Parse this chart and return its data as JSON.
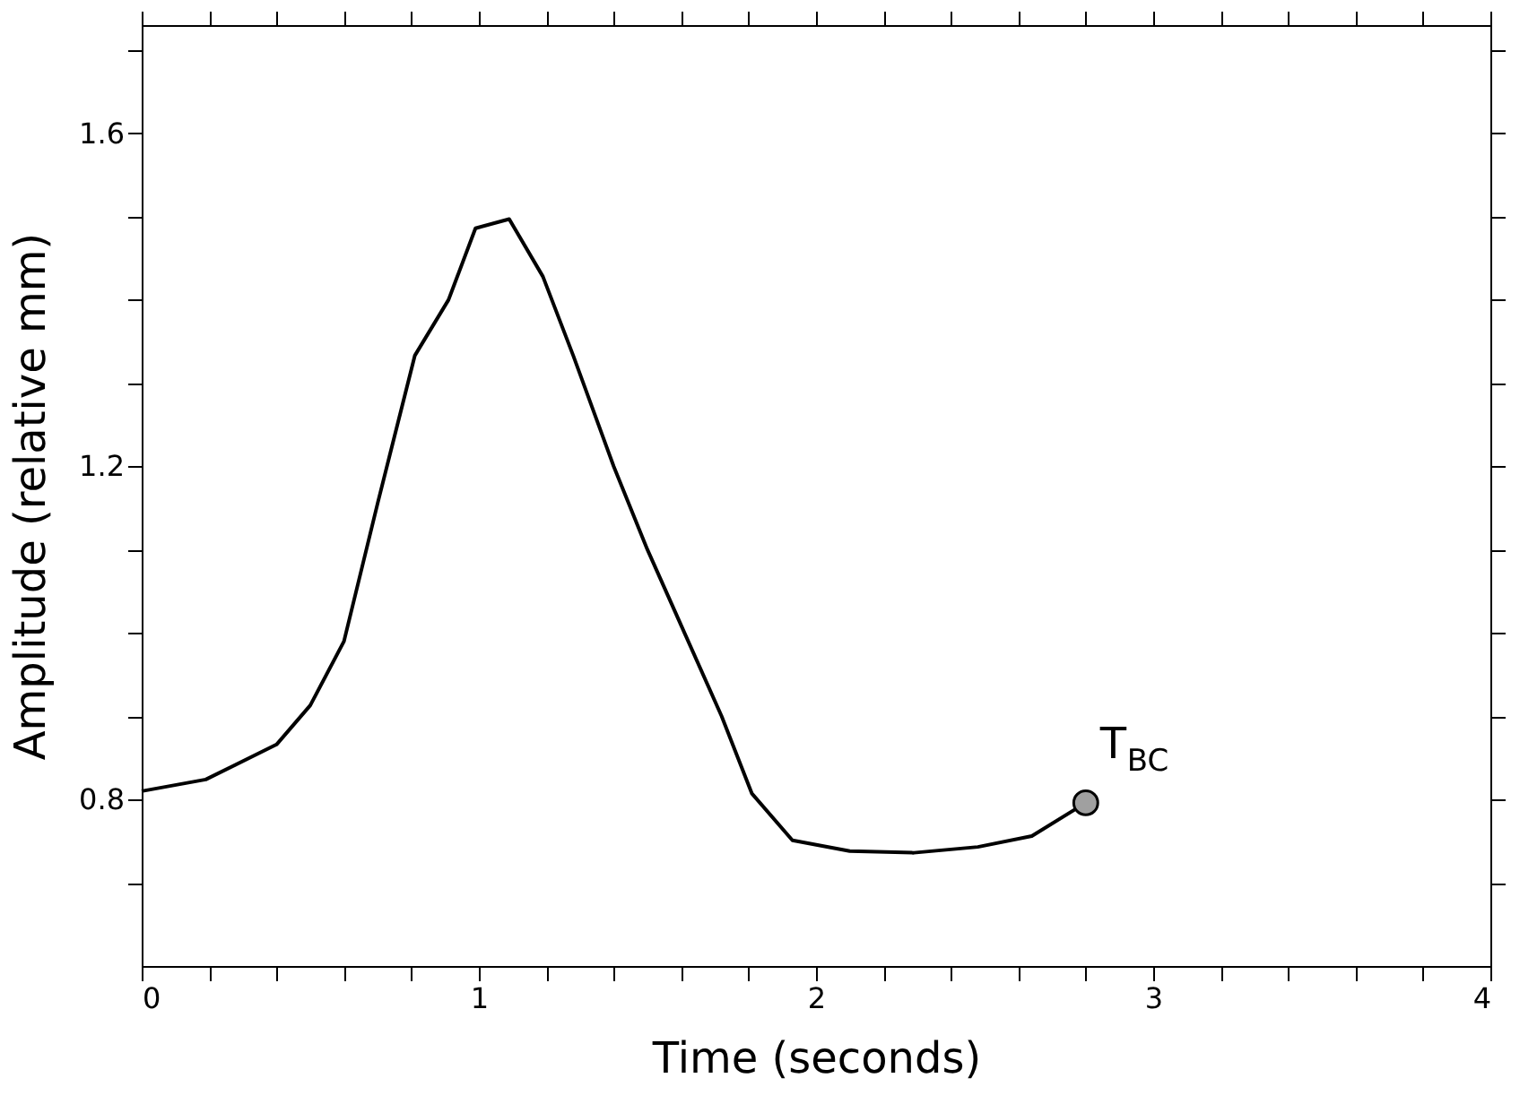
{
  "chart_data": {
    "type": "line",
    "xlabel": "Time (seconds)",
    "ylabel": "Amplitude (relative mm)",
    "xlim": [
      0,
      4
    ],
    "ylim": [
      0.6,
      1.73
    ],
    "xticks": [
      0,
      {
        "value": 0.2,
        "label": null
      },
      {
        "value": 0.4,
        "label": null
      },
      {
        "value": 0.6,
        "label": null
      },
      {
        "value": 0.8,
        "label": null
      },
      1,
      {
        "value": 1.2,
        "label": null
      },
      {
        "value": 1.4,
        "label": null
      },
      {
        "value": 1.6,
        "label": null
      },
      {
        "value": 1.8,
        "label": null
      },
      2,
      {
        "value": 2.2,
        "label": null
      },
      {
        "value": 2.4,
        "label": null
      },
      {
        "value": 2.6,
        "label": null
      },
      {
        "value": 2.8,
        "label": null
      },
      3,
      {
        "value": 3.2,
        "label": null
      },
      {
        "value": 3.4,
        "label": null
      },
      {
        "value": 3.6,
        "label": null
      },
      {
        "value": 3.8,
        "label": null
      },
      4
    ],
    "yticks": [
      {
        "value": 0.7,
        "label": null
      },
      0.8,
      {
        "value": 0.9,
        "label": null
      },
      {
        "value": 1.0,
        "label": null
      },
      {
        "value": 1.1,
        "label": null
      },
      1.2,
      {
        "value": 1.3,
        "label": null
      },
      {
        "value": 1.4,
        "label": null
      },
      {
        "value": 1.5,
        "label": null
      },
      1.6,
      {
        "value": 1.7,
        "label": null
      }
    ],
    "series": [
      {
        "color": "#000000",
        "marker": "none",
        "line_style": "solid",
        "x": [
          0,
          0.19,
          0.4,
          0.5,
          0.6,
          0.7,
          0.81,
          0.91,
          0.99,
          1.09,
          1.19,
          1.28,
          1.4,
          1.5,
          1.61,
          1.72,
          1.81,
          1.93,
          2.1,
          2.29,
          2.48,
          2.64,
          2.8
        ],
        "values": [
          0.81,
          0.824,
          0.866,
          0.913,
          0.99,
          1.156,
          1.333,
          1.4,
          1.486,
          1.497,
          1.428,
          1.333,
          1.2,
          1.1,
          1.0,
          0.9,
          0.807,
          0.751,
          0.738,
          0.736,
          0.743,
          0.756,
          0.796
        ]
      },
      {
        "type": "scatter",
        "color": "#a0a0a0",
        "marker": "circle",
        "x": [
          2.8
        ],
        "values": [
          0.796
        ]
      }
    ],
    "annotations": [
      {
        "text": "T$_{BC}$",
        "x": 2.8,
        "y": 0.796
      }
    ]
  }
}
